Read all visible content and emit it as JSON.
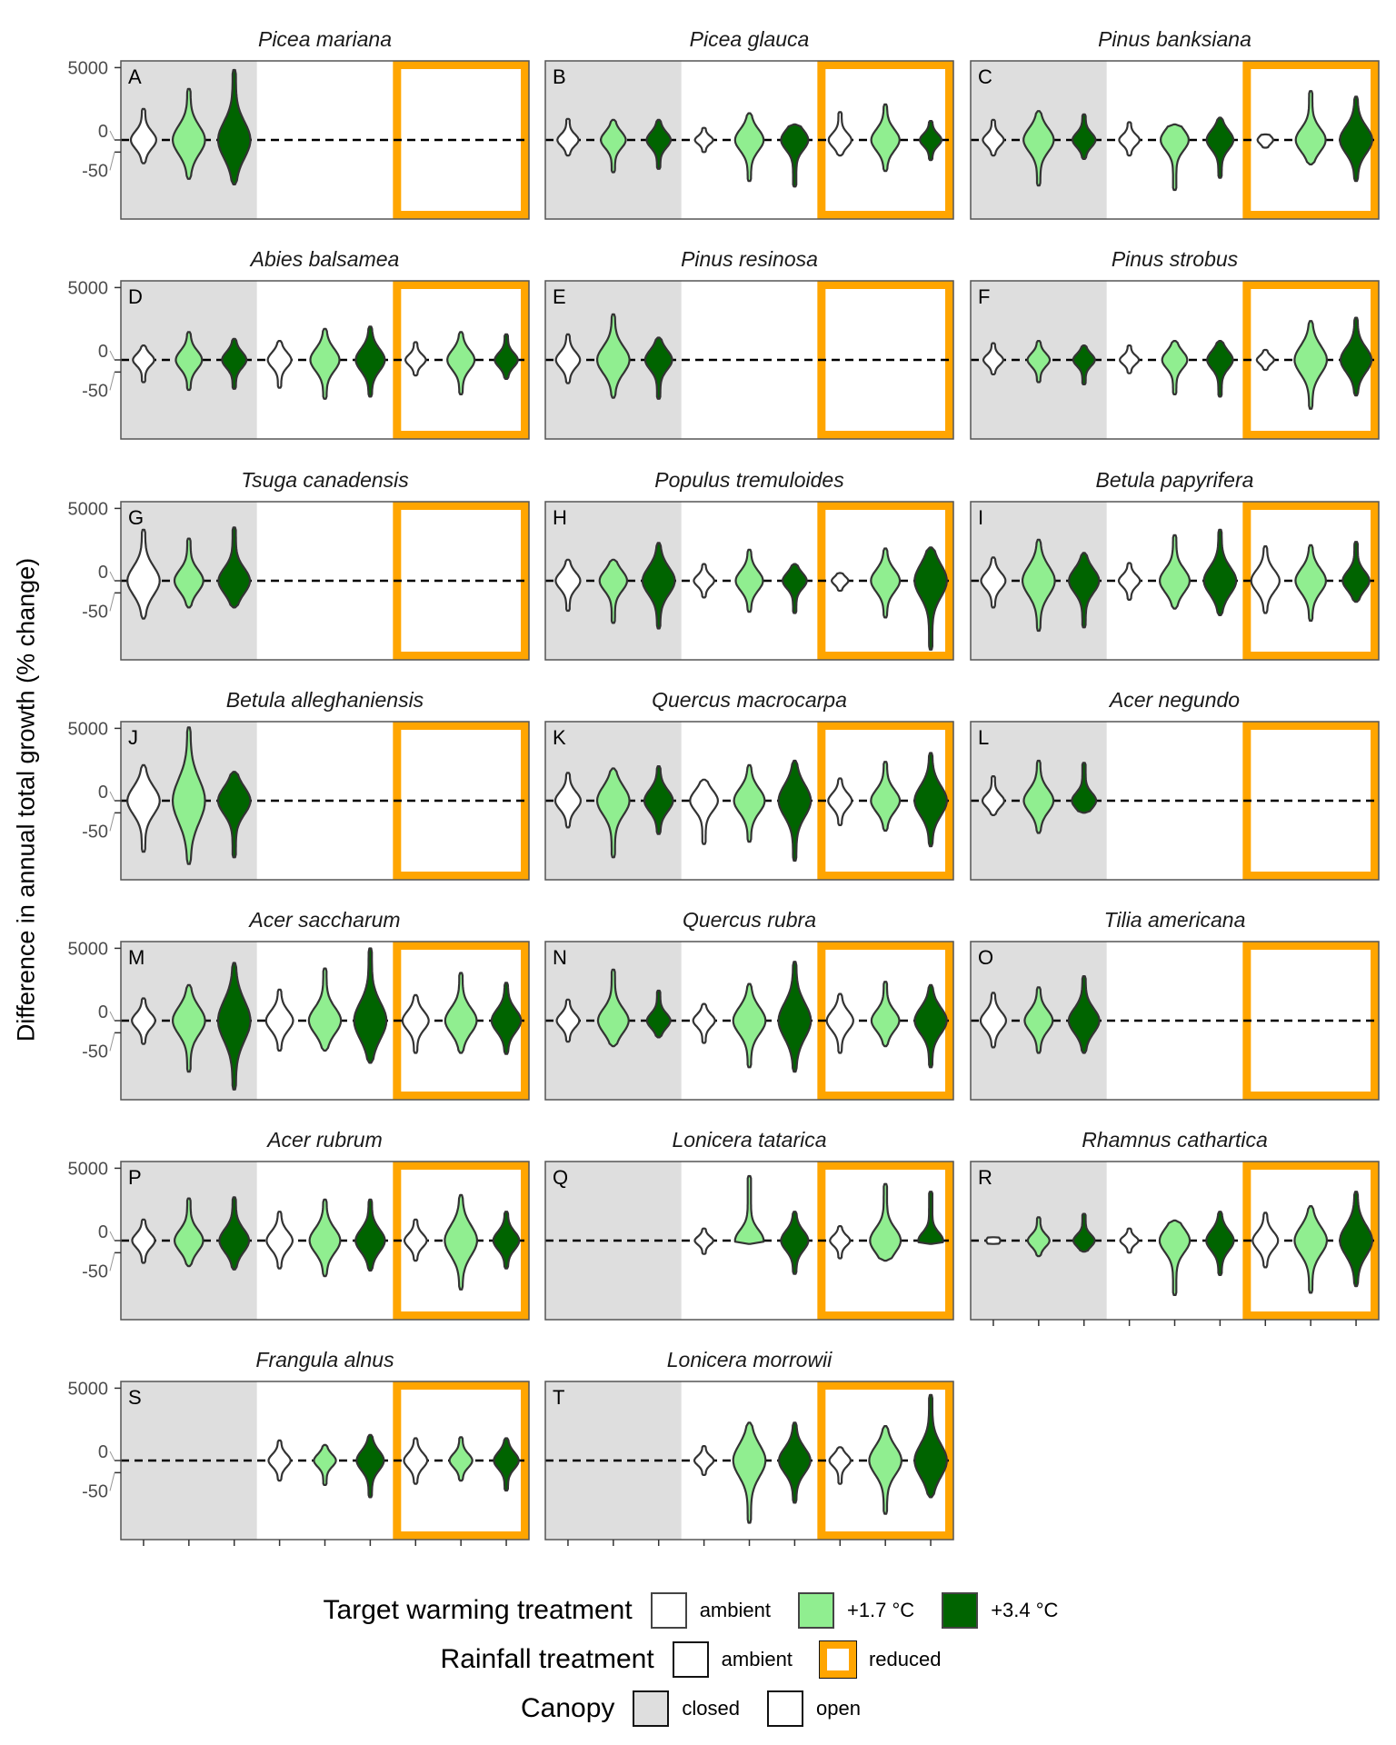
{
  "chart_data": {
    "type": "violin",
    "ylabel": "Difference in annual total growth (% change)",
    "y_ticks": [
      "5000",
      "0",
      "-50"
    ],
    "y_tick_values": [
      5000,
      0,
      -50
    ],
    "y_scale": "signed-log (pseudo-log)",
    "reference_line": 0,
    "slot_order": [
      "closed/ambient rain/ambient",
      "closed/ambient rain/+1.7 °C",
      "closed/ambient rain/+3.4 °C",
      "open/ambient rain/ambient",
      "open/ambient rain/+1.7 °C",
      "open/ambient rain/+3.4 °C",
      "open/reduced rain/ambient",
      "open/reduced rain/+1.7 °C",
      "open/reduced rain/+3.4 °C"
    ],
    "colors": {
      "ambient": "#FFFFFF",
      "warm17": "#90EE90",
      "warm34": "#006400",
      "closed_canopy": "#DEDEDE",
      "reduced_rain": "#FFA500"
    },
    "panels": [
      {
        "letter": "A",
        "species": "Picea mariana",
        "violins": [
          [
            280,
            -150
          ],
          [
            1175,
            -498
          ],
          [
            4270,
            -740
          ],
          null,
          null,
          null,
          null,
          null,
          null
        ]
      },
      {
        "letter": "B",
        "species": "Picea glauca",
        "violins": [
          [
            124,
            -73
          ],
          [
            113,
            -305
          ],
          [
            113,
            -236
          ],
          [
            50,
            -50
          ],
          [
            198,
            -585
          ],
          [
            73,
            -865
          ],
          [
            216,
            -73
          ],
          [
            390,
            -280
          ],
          [
            102,
            -113
          ]
        ]
      },
      {
        "letter": "C",
        "species": "Pinus banksiana",
        "violins": [
          [
            113,
            -73
          ],
          [
            236,
            -800
          ],
          [
            181,
            -102
          ],
          [
            91,
            -73
          ],
          [
            73,
            -1090
          ],
          [
            137,
            -460
          ],
          [
            18,
            -27
          ],
          [
            1008,
            -165
          ],
          [
            683,
            -585
          ]
        ]
      },
      {
        "letter": "D",
        "species": "Abies balsamea",
        "violins": [
          [
            65,
            -137
          ],
          [
            216,
            -257
          ],
          [
            124,
            -236
          ],
          [
            102,
            -216
          ],
          [
            280,
            -498
          ],
          [
            331,
            -425
          ],
          [
            91,
            -73
          ],
          [
            216,
            -360
          ],
          [
            181,
            -102
          ]
        ]
      },
      {
        "letter": "E",
        "species": "Pinus resinosa",
        "violins": [
          [
            181,
            -150
          ],
          [
            800,
            -460
          ],
          [
            137,
            -498
          ],
          null,
          null,
          null,
          null,
          null,
          null
        ]
      },
      {
        "letter": "F",
        "species": "Pinus strobus",
        "violins": [
          [
            82,
            -65
          ],
          [
            102,
            -137
          ],
          [
            65,
            -165
          ],
          [
            65,
            -58
          ],
          [
            102,
            -360
          ],
          [
            102,
            -425
          ],
          [
            38,
            -38
          ],
          [
            498,
            -1008
          ],
          [
            632,
            -390
          ]
        ]
      },
      {
        "letter": "G",
        "species": "Tsuga canadensis",
        "violins": [
          [
            1175,
            -460
          ],
          [
            632,
            -198
          ],
          [
            1370,
            -198
          ],
          null,
          null,
          null,
          null,
          null,
          null
        ]
      },
      {
        "letter": "H",
        "species": "Populus tremuloides",
        "violins": [
          [
            124,
            -257
          ],
          [
            124,
            -632
          ],
          [
            460,
            -933
          ],
          [
            82,
            -82
          ],
          [
            280,
            -280
          ],
          [
            82,
            -305
          ],
          [
            27,
            -38
          ],
          [
            305,
            -425
          ],
          [
            331,
            -3960
          ]
        ]
      },
      {
        "letter": "I",
        "species": "Betula papyrifera",
        "violins": [
          [
            150,
            -198
          ],
          [
            585,
            -1090
          ],
          [
            216,
            -865
          ],
          [
            91,
            -102
          ],
          [
            800,
            -216
          ],
          [
            1175,
            -360
          ],
          [
            360,
            -305
          ],
          [
            390,
            -540
          ],
          [
            498,
            -124
          ]
        ]
      },
      {
        "letter": "J",
        "species": "Betula alleghaniensis",
        "violins": [
          [
            390,
            -1175
          ],
          [
            5350,
            -2720
          ],
          [
            236,
            -1720
          ],
          null,
          null,
          null,
          null,
          null,
          null
        ]
      },
      {
        "letter": "K",
        "species": "Quercus macrocarpa",
        "violins": [
          [
            216,
            -198
          ],
          [
            305,
            -1720
          ],
          [
            360,
            -331
          ],
          [
            124,
            -683
          ],
          [
            390,
            -585
          ],
          [
            540,
            -2170
          ],
          [
            137,
            -165
          ],
          [
            498,
            -257
          ],
          [
            933,
            -800
          ]
        ]
      },
      {
        "letter": "L",
        "species": "Acer negundo",
        "violins": [
          [
            165,
            -65
          ],
          [
            540,
            -305
          ],
          [
            460,
            -50
          ],
          null,
          null,
          null,
          null,
          null,
          null
        ]
      },
      {
        "letter": "M",
        "species": "Acer saccharum",
        "violins": [
          [
            137,
            -150
          ],
          [
            390,
            -1175
          ],
          [
            1860,
            -3960
          ],
          [
            280,
            -257
          ],
          [
            1270,
            -257
          ],
          [
            4960,
            -632
          ],
          [
            181,
            -305
          ],
          [
            933,
            -305
          ],
          [
            460,
            -331
          ]
        ]
      },
      {
        "letter": "N",
        "species": "Quercus rubra",
        "violins": [
          [
            124,
            -124
          ],
          [
            1175,
            -181
          ],
          [
            257,
            -82
          ],
          [
            82,
            -137
          ],
          [
            425,
            -865
          ],
          [
            2010,
            -1175
          ],
          [
            198,
            -305
          ],
          [
            498,
            -181
          ],
          [
            390,
            -865
          ]
        ]
      },
      {
        "letter": "O",
        "species": "Tilia americana",
        "violins": [
          [
            216,
            -198
          ],
          [
            331,
            -305
          ],
          [
            740,
            -305
          ],
          null,
          null,
          null,
          null,
          null,
          null
        ]
      },
      {
        "letter": "P",
        "species": "Acer rubrum",
        "violins": [
          [
            124,
            -137
          ],
          [
            632,
            -181
          ],
          [
            683,
            -236
          ],
          [
            236,
            -216
          ],
          [
            585,
            -390
          ],
          [
            585,
            -257
          ],
          [
            124,
            -113
          ],
          [
            800,
            -1008
          ],
          [
            236,
            -216
          ]
        ]
      },
      {
        "letter": "Q",
        "species": "Lonicera tatarica",
        "violins": [
          null,
          null,
          null,
          [
            50,
            -58
          ],
          [
            2940,
            -10
          ],
          [
            236,
            -331
          ],
          [
            65,
            -91
          ],
          [
            1720,
            -113
          ],
          [
            1008,
            -10
          ]
        ]
      },
      {
        "letter": "R",
        "species": "Rhamnus cathartica",
        "violins": [
          [
            10,
            -10
          ],
          [
            150,
            -73
          ],
          [
            198,
            -44
          ],
          [
            50,
            -50
          ],
          [
            113,
            -1480
          ],
          [
            236,
            -360
          ],
          [
            216,
            -198
          ],
          [
            360,
            -1270
          ],
          [
            1008,
            -800
          ]
        ]
      },
      {
        "letter": "S",
        "species": "Frangula alnus",
        "violins": [
          null,
          null,
          null,
          [
            113,
            -113
          ],
          [
            73,
            -165
          ],
          [
            181,
            -425
          ],
          [
            137,
            -150
          ],
          [
            150,
            -113
          ],
          [
            137,
            -257
          ]
        ]
      },
      {
        "letter": "T",
        "species": "Lonicera morrowii",
        "violins": [
          null,
          null,
          null,
          [
            65,
            -65
          ],
          [
            460,
            -2520
          ],
          [
            460,
            -632
          ],
          [
            58,
            -150
          ],
          [
            360,
            -1370
          ],
          [
            3170,
            -425
          ]
        ]
      }
    ],
    "legend": {
      "warming": {
        "title": "Target warming treatment",
        "items": [
          "ambient",
          "+1.7 °C",
          "+3.4 °C"
        ]
      },
      "rainfall": {
        "title": "Rainfall treatment",
        "items": [
          "ambient",
          "reduced"
        ]
      },
      "canopy": {
        "title": "Canopy",
        "items": [
          "closed",
          "open"
        ]
      }
    }
  }
}
